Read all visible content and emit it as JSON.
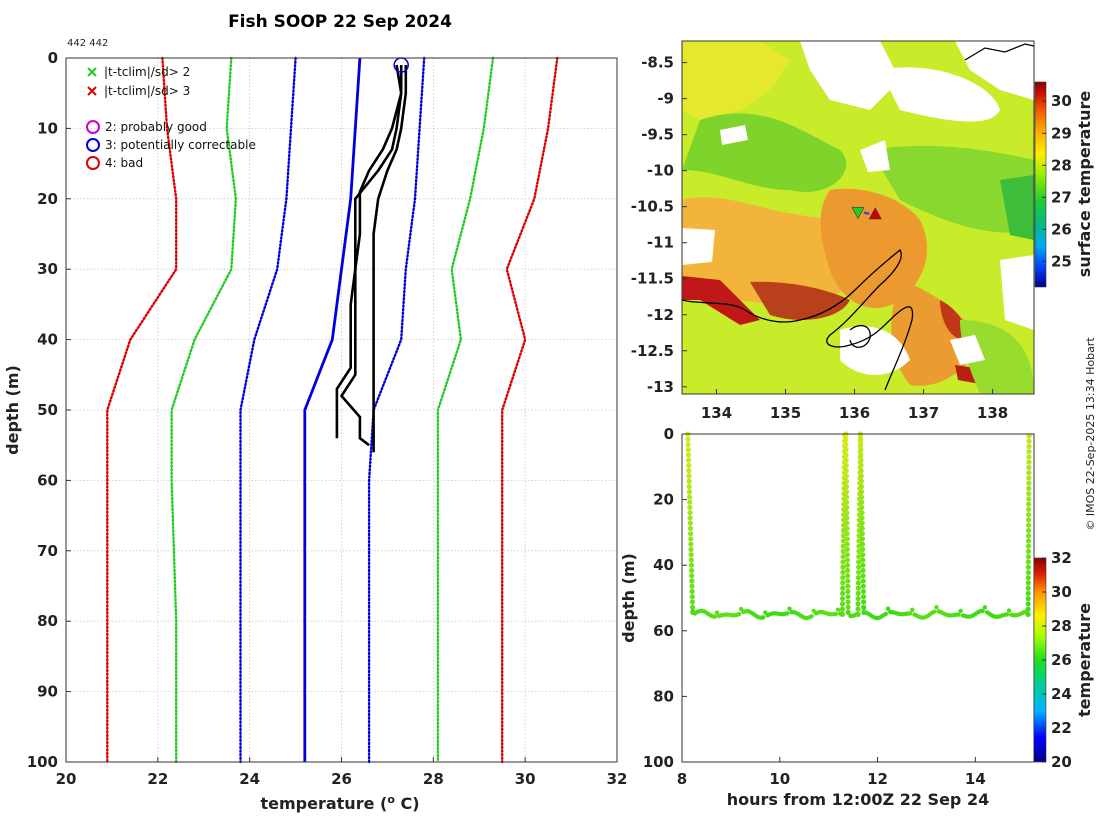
{
  "figure": {
    "title": "Fish SOOP 22 Sep 2024",
    "profile_id": "442 442",
    "credit": "© IMOS 22-Sep-2025 13:34 Hobart"
  },
  "chart_data": [
    {
      "type": "line",
      "name": "temperature-profile",
      "xlabel": "temperature (o C)",
      "xlabel_parts": {
        "pre": "temperature (",
        "sup": "o",
        "post": " C)"
      },
      "ylabel": "depth (m)",
      "xlim": [
        20,
        32
      ],
      "ylim": [
        100,
        0
      ],
      "xticks": [
        20,
        22,
        24,
        26,
        28,
        30,
        32
      ],
      "yticks": [
        0,
        10,
        20,
        30,
        40,
        50,
        60,
        70,
        80,
        90,
        100
      ],
      "legend": {
        "position": "top-left",
        "x_items": [
          {
            "label": "|t-tclim|/sd> 2",
            "color": "#22cc22"
          },
          {
            "label": "|t-tclim|/sd> 3",
            "color": "#dd0000"
          }
        ],
        "circle_items": [
          {
            "label": "2: probably good",
            "color": "#cc00cc"
          },
          {
            "label": "3: potentially correctable",
            "color": "#0000dd"
          },
          {
            "label": "4: bad",
            "color": "#dd0000"
          }
        ]
      },
      "series": [
        {
          "name": "clim-minus-3sd",
          "color": "#dd0000",
          "style": "dotted",
          "points": [
            [
              22.1,
              0
            ],
            [
              22.2,
              10
            ],
            [
              22.4,
              20
            ],
            [
              22.4,
              30
            ],
            [
              21.4,
              40
            ],
            [
              20.9,
              50
            ],
            [
              20.9,
              60
            ],
            [
              20.9,
              80
            ],
            [
              20.9,
              100
            ]
          ]
        },
        {
          "name": "clim-minus-2sd",
          "color": "#22cc22",
          "style": "dotted",
          "points": [
            [
              23.6,
              0
            ],
            [
              23.5,
              10
            ],
            [
              23.7,
              20
            ],
            [
              23.6,
              30
            ],
            [
              22.8,
              40
            ],
            [
              22.3,
              50
            ],
            [
              22.3,
              60
            ],
            [
              22.4,
              80
            ],
            [
              22.4,
              100
            ]
          ]
        },
        {
          "name": "clim-minus-1sd",
          "color": "#0000dd",
          "style": "dotted",
          "points": [
            [
              25.0,
              0
            ],
            [
              24.9,
              10
            ],
            [
              24.8,
              20
            ],
            [
              24.6,
              30
            ],
            [
              24.1,
              40
            ],
            [
              23.8,
              50
            ],
            [
              23.8,
              60
            ],
            [
              23.8,
              80
            ],
            [
              23.8,
              100
            ]
          ]
        },
        {
          "name": "climatology-mean",
          "color": "#0000dd",
          "style": "solid",
          "points": [
            [
              26.4,
              0
            ],
            [
              26.3,
              10
            ],
            [
              26.2,
              20
            ],
            [
              26.0,
              30
            ],
            [
              25.8,
              40
            ],
            [
              25.2,
              50
            ],
            [
              25.2,
              60
            ],
            [
              25.2,
              80
            ],
            [
              25.2,
              100
            ]
          ]
        },
        {
          "name": "clim-plus-1sd",
          "color": "#0000dd",
          "style": "dotted",
          "points": [
            [
              27.8,
              0
            ],
            [
              27.7,
              10
            ],
            [
              27.6,
              20
            ],
            [
              27.4,
              30
            ],
            [
              27.3,
              40
            ],
            [
              26.7,
              50
            ],
            [
              26.6,
              60
            ],
            [
              26.6,
              80
            ],
            [
              26.6,
              100
            ]
          ]
        },
        {
          "name": "clim-plus-2sd",
          "color": "#22cc22",
          "style": "dotted",
          "points": [
            [
              29.3,
              0
            ],
            [
              29.1,
              10
            ],
            [
              28.8,
              20
            ],
            [
              28.4,
              30
            ],
            [
              28.6,
              40
            ],
            [
              28.1,
              50
            ],
            [
              28.1,
              60
            ],
            [
              28.1,
              80
            ],
            [
              28.1,
              100
            ]
          ]
        },
        {
          "name": "clim-plus-3sd",
          "color": "#dd0000",
          "style": "dotted",
          "points": [
            [
              30.7,
              0
            ],
            [
              30.5,
              10
            ],
            [
              30.2,
              20
            ],
            [
              29.6,
              30
            ],
            [
              30.0,
              40
            ],
            [
              29.5,
              50
            ],
            [
              29.5,
              60
            ],
            [
              29.5,
              80
            ],
            [
              29.5,
              100
            ]
          ]
        },
        {
          "name": "profile-1",
          "color": "#000000",
          "style": "solid",
          "points": [
            [
              27.3,
              1
            ],
            [
              27.3,
              5
            ],
            [
              27.2,
              10
            ],
            [
              27.1,
              13
            ],
            [
              26.8,
              16
            ],
            [
              26.3,
              20
            ],
            [
              26.3,
              25
            ],
            [
              26.3,
              30
            ],
            [
              26.2,
              35
            ],
            [
              26.2,
              40
            ],
            [
              26.2,
              44
            ],
            [
              25.9,
              47
            ],
            [
              25.9,
              50
            ],
            [
              25.9,
              54
            ]
          ]
        },
        {
          "name": "profile-2",
          "color": "#000000",
          "style": "solid",
          "points": [
            [
              27.2,
              1
            ],
            [
              27.3,
              5
            ],
            [
              27.1,
              10
            ],
            [
              26.9,
              13
            ],
            [
              26.6,
              16
            ],
            [
              26.4,
              19
            ],
            [
              26.4,
              25
            ],
            [
              26.3,
              30
            ],
            [
              26.3,
              35
            ],
            [
              26.3,
              40
            ],
            [
              26.3,
              45
            ],
            [
              26.0,
              48
            ],
            [
              26.4,
              51
            ],
            [
              26.4,
              54
            ],
            [
              26.6,
              55
            ]
          ]
        },
        {
          "name": "profile-3",
          "color": "#000000",
          "style": "solid",
          "points": [
            [
              27.4,
              1
            ],
            [
              27.4,
              5
            ],
            [
              27.3,
              10
            ],
            [
              27.2,
              13
            ],
            [
              27.0,
              16
            ],
            [
              26.8,
              20
            ],
            [
              26.7,
              25
            ],
            [
              26.7,
              30
            ],
            [
              26.7,
              35
            ],
            [
              26.7,
              40
            ],
            [
              26.7,
              45
            ],
            [
              26.7,
              50
            ],
            [
              26.7,
              56
            ]
          ]
        }
      ],
      "markers": [
        {
          "x": 27.3,
          "y": 1,
          "shape": "circle",
          "color": "#0000dd"
        }
      ]
    },
    {
      "type": "heatmap",
      "name": "surface-temperature-map",
      "xlim": [
        133.5,
        138.6
      ],
      "ylim": [
        -13.1,
        -8.2
      ],
      "xticks": [
        134,
        135,
        136,
        137,
        138
      ],
      "yticks": [
        -8.5,
        -9,
        -9.5,
        -10,
        -10.5,
        -11,
        -11.5,
        -12,
        -12.5,
        -13
      ],
      "colorbar": {
        "label": "surface temperature",
        "range": [
          24.2,
          30.6
        ],
        "ticks": [
          25,
          26,
          27,
          28,
          29,
          30
        ]
      },
      "markers": [
        {
          "x": 136.05,
          "y": -10.58,
          "shape": "triangle-down",
          "color": "#22cc22"
        },
        {
          "x": 136.3,
          "y": -10.6,
          "shape": "triangle-up",
          "color": "#cc0000"
        }
      ]
    },
    {
      "type": "scatter",
      "name": "depth-time-section",
      "xlabel": "hours from 12:00Z 22 Sep 24",
      "ylabel": "depth (m)",
      "xlim": [
        8,
        15.2
      ],
      "ylim": [
        100,
        0
      ],
      "xticks": [
        8,
        10,
        12,
        14
      ],
      "yticks": [
        0,
        20,
        40,
        60,
        80,
        100
      ],
      "colorbar": {
        "label": "temperature",
        "range": [
          20,
          32
        ],
        "ticks": [
          20,
          22,
          24,
          26,
          28,
          30,
          32
        ]
      },
      "casts": [
        {
          "start": 8.12,
          "bottom_time": 8.22,
          "end": 11.28,
          "bottom_depth": 55,
          "surface_temp": 28.3
        },
        {
          "start": 11.35,
          "bottom_time": 11.4,
          "end": 11.6,
          "bottom_depth": 55,
          "surface_temp": 28.3
        },
        {
          "start": 11.65,
          "bottom_time": 11.72,
          "end": 15.05,
          "bottom_depth": 55,
          "surface_temp": 28.0
        }
      ]
    }
  ]
}
